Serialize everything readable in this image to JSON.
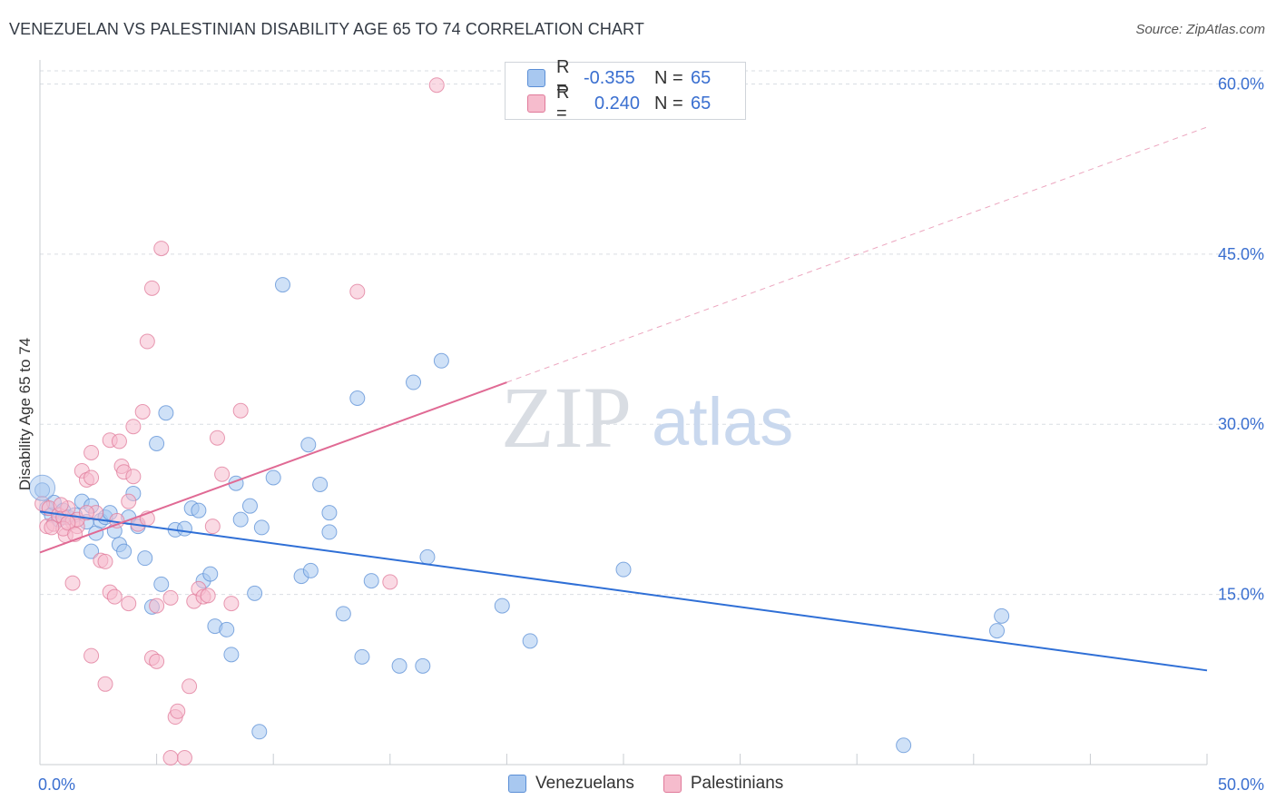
{
  "header": {
    "title": "VENEZUELAN VS PALESTINIAN DISABILITY AGE 65 TO 74 CORRELATION CHART",
    "source": "Source: ZipAtlas.com"
  },
  "legend": {
    "rows": [
      {
        "r_label": "R =",
        "r_value": "-0.355",
        "n_label": "N =",
        "n_value": "65",
        "color": "#a8c8f0",
        "border": "#5b8fd6"
      },
      {
        "r_label": "R =",
        "r_value": "0.240",
        "n_label": "N =",
        "n_value": "65",
        "color": "#f6bccd",
        "border": "#e07a9a"
      }
    ],
    "bottom": [
      "Venezuelans",
      "Palestinians"
    ]
  },
  "watermark": {
    "left": "ZIP",
    "right": "atlas"
  },
  "colors": {
    "venezuelan_fill": "#a8c8f0",
    "venezuelan_stroke": "#5b8fd6",
    "venezuelan_line": "#2f6fd6",
    "palestinian_fill": "#f6bccd",
    "palestinian_stroke": "#e07a9a",
    "palestinian_line": "#e06a94",
    "grid": "#d9dde3",
    "tick_text": "#3a6fd0"
  },
  "chart_data": {
    "type": "scatter",
    "title": "VENEZUELAN VS PALESTINIAN DISABILITY AGE 65 TO 74 CORRELATION CHART",
    "xlabel": "",
    "ylabel": "Disability Age 65 to 74",
    "xlim": [
      0,
      50
    ],
    "ylim": [
      0,
      62.6
    ],
    "x_tick_labels": [
      "0.0%",
      "50.0%"
    ],
    "y_ticks": [
      15,
      30,
      45,
      60
    ],
    "y_tick_labels": [
      "15.0%",
      "30.0%",
      "45.0%",
      "60.0%"
    ],
    "grid": true,
    "legend_position": "top-center",
    "series": [
      {
        "name": "Venezuelans",
        "r": -0.355,
        "n": 65,
        "trend": {
          "x0": 0,
          "y0": 22.3,
          "x1": 50,
          "y1": 8.3
        },
        "points": [
          [
            0.1,
            24.2
          ],
          [
            0.3,
            22.6
          ],
          [
            0.5,
            22.0
          ],
          [
            0.6,
            23.1
          ],
          [
            0.8,
            21.6
          ],
          [
            1.0,
            22.4
          ],
          [
            1.2,
            21.8
          ],
          [
            1.5,
            22.0
          ],
          [
            1.8,
            23.2
          ],
          [
            2.0,
            21.4
          ],
          [
            2.2,
            22.8
          ],
          [
            2.2,
            18.8
          ],
          [
            2.4,
            20.4
          ],
          [
            2.6,
            21.5
          ],
          [
            2.8,
            21.8
          ],
          [
            3.0,
            22.2
          ],
          [
            3.2,
            20.6
          ],
          [
            3.4,
            19.4
          ],
          [
            3.6,
            18.8
          ],
          [
            3.8,
            21.8
          ],
          [
            4.0,
            23.9
          ],
          [
            4.2,
            21.0
          ],
          [
            4.5,
            18.2
          ],
          [
            4.8,
            13.9
          ],
          [
            5.0,
            28.3
          ],
          [
            5.2,
            15.9
          ],
          [
            5.4,
            31.0
          ],
          [
            5.8,
            20.7
          ],
          [
            6.2,
            20.8
          ],
          [
            6.5,
            22.6
          ],
          [
            6.8,
            22.4
          ],
          [
            7.0,
            16.2
          ],
          [
            7.3,
            16.8
          ],
          [
            7.5,
            12.2
          ],
          [
            8.0,
            11.9
          ],
          [
            8.2,
            9.7
          ],
          [
            8.4,
            24.8
          ],
          [
            8.6,
            21.6
          ],
          [
            9.0,
            22.8
          ],
          [
            9.2,
            15.1
          ],
          [
            9.5,
            20.9
          ],
          [
            9.4,
            2.9
          ],
          [
            10.0,
            25.3
          ],
          [
            10.4,
            42.3
          ],
          [
            11.5,
            28.2
          ],
          [
            12.0,
            24.7
          ],
          [
            12.4,
            22.2
          ],
          [
            11.2,
            16.6
          ],
          [
            11.6,
            17.1
          ],
          [
            12.4,
            20.5
          ],
          [
            13.0,
            13.3
          ],
          [
            13.6,
            32.3
          ],
          [
            14.2,
            16.2
          ],
          [
            13.8,
            9.5
          ],
          [
            15.4,
            8.7
          ],
          [
            16.0,
            33.7
          ],
          [
            16.4,
            8.7
          ],
          [
            16.6,
            18.3
          ],
          [
            17.2,
            35.6
          ],
          [
            19.8,
            14.0
          ],
          [
            21.0,
            10.9
          ],
          [
            25.0,
            17.2
          ],
          [
            37.0,
            1.7
          ],
          [
            41.0,
            11.8
          ],
          [
            41.2,
            13.1
          ]
        ]
      },
      {
        "name": "Palestinians",
        "r": 0.24,
        "n": 65,
        "trend": {
          "x0": 0,
          "y0": 18.7,
          "x1": 20,
          "y1": 33.7,
          "dash_to_x": 50,
          "dash_to_y": 56.2
        },
        "points": [
          [
            0.1,
            23.0
          ],
          [
            0.3,
            21.0
          ],
          [
            0.4,
            22.6
          ],
          [
            0.6,
            21.2
          ],
          [
            0.8,
            22.0
          ],
          [
            1.0,
            21.8
          ],
          [
            1.1,
            20.2
          ],
          [
            1.2,
            22.6
          ],
          [
            1.4,
            21.4
          ],
          [
            1.6,
            21.0
          ],
          [
            1.8,
            25.9
          ],
          [
            2.0,
            25.1
          ],
          [
            2.2,
            25.3
          ],
          [
            2.2,
            27.5
          ],
          [
            2.4,
            22.2
          ],
          [
            2.6,
            18.0
          ],
          [
            2.8,
            17.9
          ],
          [
            3.0,
            28.6
          ],
          [
            3.0,
            15.2
          ],
          [
            3.2,
            14.8
          ],
          [
            3.4,
            28.5
          ],
          [
            3.5,
            26.3
          ],
          [
            3.6,
            25.8
          ],
          [
            3.8,
            14.2
          ],
          [
            3.8,
            23.2
          ],
          [
            4.0,
            25.4
          ],
          [
            4.0,
            29.8
          ],
          [
            4.2,
            21.2
          ],
          [
            4.4,
            31.1
          ],
          [
            4.6,
            37.3
          ],
          [
            4.8,
            42.0
          ],
          [
            4.8,
            9.4
          ],
          [
            5.0,
            9.1
          ],
          [
            5.0,
            14.0
          ],
          [
            5.2,
            45.5
          ],
          [
            5.6,
            14.7
          ],
          [
            5.8,
            4.2
          ],
          [
            5.9,
            4.7
          ],
          [
            6.2,
            0.6
          ],
          [
            6.4,
            6.9
          ],
          [
            6.6,
            14.4
          ],
          [
            6.8,
            15.5
          ],
          [
            7.0,
            14.8
          ],
          [
            7.2,
            14.9
          ],
          [
            7.4,
            21.0
          ],
          [
            7.6,
            28.8
          ],
          [
            7.8,
            25.6
          ],
          [
            8.2,
            14.2
          ],
          [
            8.6,
            31.2
          ],
          [
            1.4,
            16.0
          ],
          [
            2.2,
            9.6
          ],
          [
            2.8,
            7.1
          ],
          [
            1.0,
            20.8
          ],
          [
            1.6,
            21.6
          ],
          [
            0.5,
            20.9
          ],
          [
            1.2,
            21.3
          ],
          [
            2.0,
            22.2
          ],
          [
            3.3,
            21.5
          ],
          [
            4.6,
            21.7
          ],
          [
            5.6,
            0.6
          ],
          [
            13.6,
            41.7
          ],
          [
            15.0,
            16.1
          ],
          [
            17.0,
            59.9
          ],
          [
            0.9,
            22.9
          ],
          [
            1.5,
            20.3
          ]
        ]
      }
    ]
  }
}
